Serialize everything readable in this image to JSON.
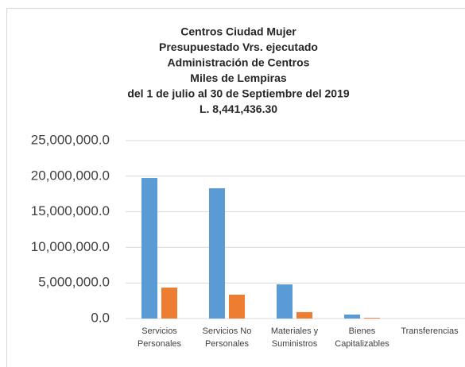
{
  "chart_data": {
    "type": "bar",
    "title": [
      "Centros Ciudad Mujer",
      "Presupuestado Vrs. ejecutado",
      "Administración de Centros",
      "Miles de Lempiras",
      "del 1 de julio al 30 de Septiembre del 2019",
      "L. 8,441,436.30"
    ],
    "categories": [
      [
        "Servicios",
        "Personales"
      ],
      [
        "Servicios No",
        "Personales"
      ],
      [
        "Materiales y",
        "Suministros"
      ],
      [
        "Bienes",
        "Capitalizables"
      ],
      [
        "Transferencias"
      ]
    ],
    "series": [
      {
        "color": "#5b9bd5",
        "values": [
          19750000,
          18300000,
          4800000,
          560000,
          0
        ]
      },
      {
        "color": "#ed7d31",
        "values": [
          4350000,
          3350000,
          900000,
          100000,
          0
        ]
      }
    ],
    "ylim": [
      0,
      25000000
    ],
    "yticks": [
      {
        "value": 0,
        "label": "0.0"
      },
      {
        "value": 5000000,
        "label": "5,000,000.0"
      },
      {
        "value": 10000000,
        "label": "10,000,000.0"
      },
      {
        "value": 15000000,
        "label": "15,000,000.0"
      },
      {
        "value": 20000000,
        "label": "20,000,000.0"
      },
      {
        "value": 25000000,
        "label": "25,000,000.0"
      }
    ],
    "grid": true
  }
}
